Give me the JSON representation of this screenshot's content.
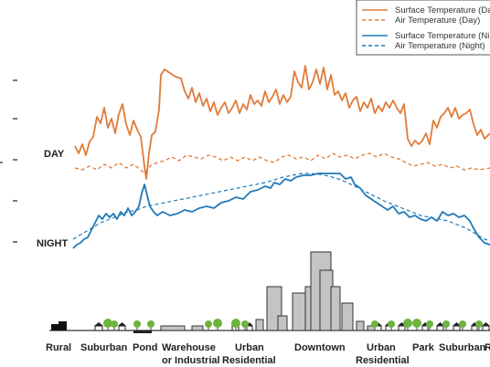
{
  "colors": {
    "day": "#e07b39",
    "night": "#1f7ab8",
    "building_fill": "#c4c4c4",
    "building_stroke": "#333333",
    "tree": "#6cb33f"
  },
  "legend": {
    "items": [
      {
        "label": "Surface Temperature (Da",
        "series": "day",
        "style": "solid"
      },
      {
        "label": "Air Temperature  (Day)",
        "series": "day",
        "style": "dashed"
      },
      {
        "label": "Surface Temperature (Ni",
        "series": "night",
        "style": "solid"
      },
      {
        "label": "Air Temperature (Night)",
        "series": "night",
        "style": "dashed"
      }
    ]
  },
  "side_labels": {
    "day": "DAY",
    "night": "NIGHT"
  },
  "zones": {
    "rural": "Rural",
    "suburban_left": "Suburban",
    "pond": "Pond",
    "warehouse_line1": "Warehouse",
    "warehouse_line2": "or Industrial",
    "urban_res_left_line1": "Urban",
    "urban_res_left_line2": "Residential",
    "downtown": "Downtown",
    "urban_res_right_line1": "Urban",
    "urban_res_right_line2": "Residential",
    "park": "Park",
    "suburban_right": "Suburban",
    "cut": "R"
  }
}
